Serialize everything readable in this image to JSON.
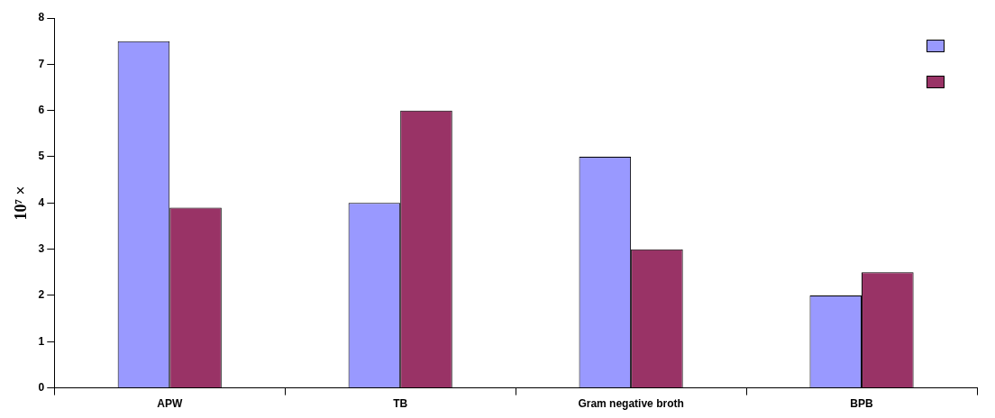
{
  "chart_data": {
    "type": "bar",
    "ylabel": "10⁷ ×",
    "categories": [
      "APW",
      "TB",
      "Gram negative broth",
      "BPB"
    ],
    "series": [
      {
        "color": "#9999ff",
        "values": [
          7.5,
          4,
          5,
          2
        ]
      },
      {
        "color": "#993366",
        "values": [
          3.9,
          6,
          3,
          2.5
        ]
      }
    ],
    "ylim": [
      0,
      8
    ],
    "yticks": [
      0,
      1,
      2,
      3,
      4,
      5,
      6,
      7,
      8
    ],
    "grid": false
  }
}
